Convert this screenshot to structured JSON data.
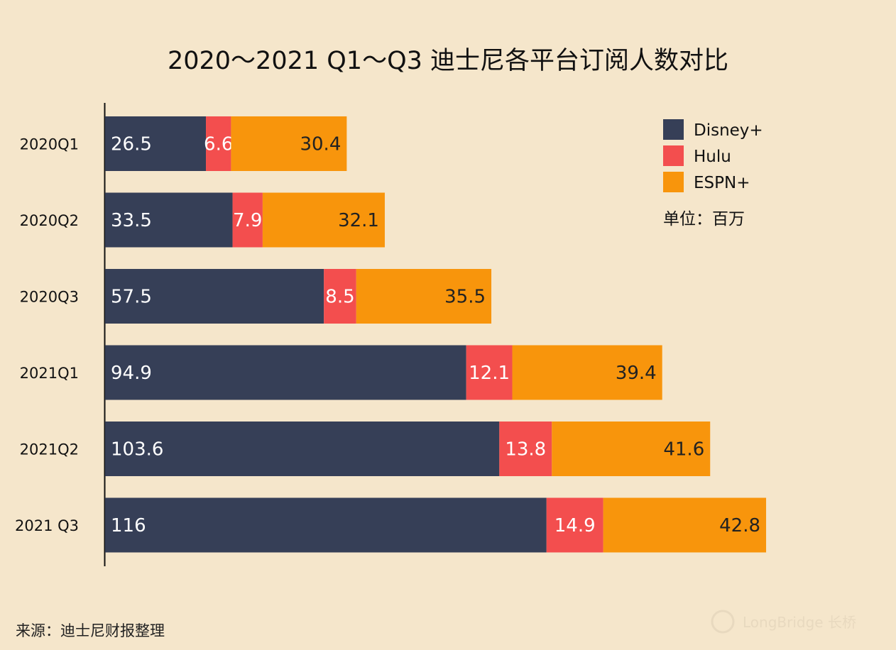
{
  "chart_data": {
    "type": "bar",
    "orientation": "horizontal",
    "stacked": true,
    "title": "2020～2021 Q1～Q3 迪士尼各平台订阅人数对比",
    "categories": [
      "2020Q1",
      "2020Q2",
      "2020Q3",
      "2021Q1",
      "2021Q2",
      "2021 Q3"
    ],
    "series": [
      {
        "name": "Disney+",
        "color": "#363f57",
        "label_color": "#ffffff",
        "labels": [
          "26.5",
          "33.5",
          "57.5",
          "94.9",
          "103.6",
          "116"
        ],
        "values": [
          26.5,
          33.5,
          57.5,
          94.9,
          103.6,
          116
        ]
      },
      {
        "name": "Hulu",
        "color": "#f34e4e",
        "label_color": "#ffffff",
        "labels": [
          "6.6",
          "7.9",
          "8.5",
          "12.1",
          "13.8",
          "14.9"
        ],
        "values": [
          6.6,
          7.9,
          8.5,
          12.1,
          13.8,
          14.9
        ]
      },
      {
        "name": "ESPN+",
        "color": "#f8950c",
        "label_color": "#222222",
        "labels": [
          "30.4",
          "32.1",
          "35.5",
          "39.4",
          "41.6",
          "42.8"
        ],
        "values": [
          30.4,
          32.1,
          35.5,
          39.4,
          41.6,
          42.8
        ]
      }
    ],
    "legend_position": "top-right",
    "unit_label": "单位：百万",
    "xlim": [
      0,
      180
    ],
    "grid": false
  },
  "footer": {
    "source": "来源：迪士尼财报整理",
    "watermark": "LongBridge 长桥"
  },
  "colors": {
    "background": "#f5e6cb"
  }
}
